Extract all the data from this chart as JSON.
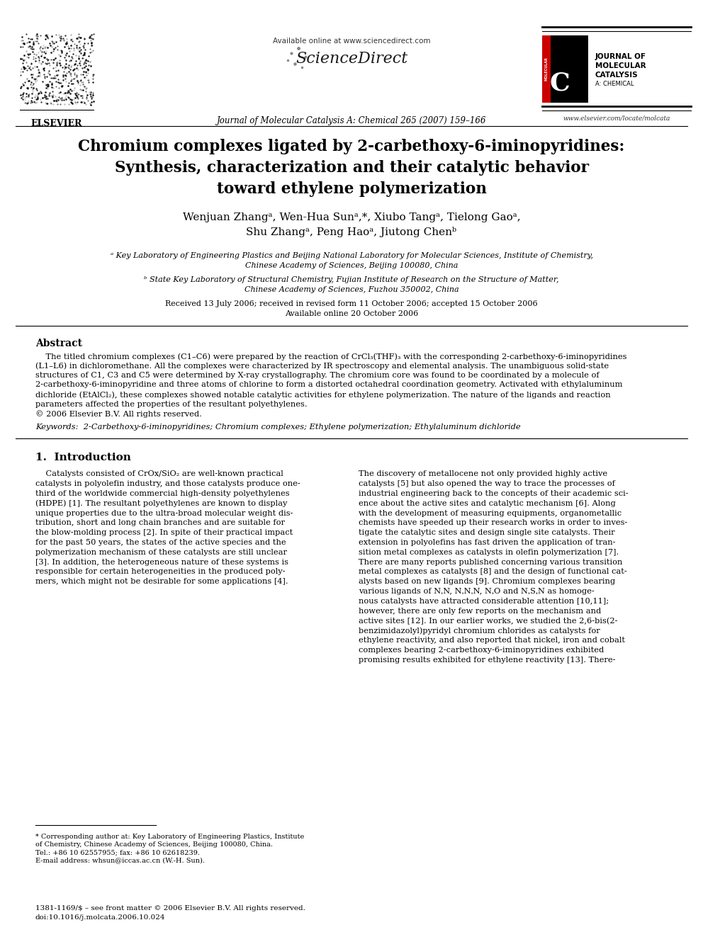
{
  "bg_color": "#ffffff",
  "title_line1": "Chromium complexes ligated by 2-carbethoxy-6-iminopyridines:",
  "title_line2": "Synthesis, characterization and their catalytic behavior",
  "title_line3": "toward ethylene polymerization",
  "authors_line1": "Wenjuan Zhangᵃ, Wen-Hua Sunᵃ,*, Xiubo Tangᵃ, Tielong Gaoᵃ,",
  "authors_line2": "Shu Zhangᵃ, Peng Haoᵃ, Jiutong Chenᵇ",
  "affil_a": "ᵃ Key Laboratory of Engineering Plastics and Beijing National Laboratory for Molecular Sciences, Institute of Chemistry,",
  "affil_a2": "Chinese Academy of Sciences, Beijing 100080, China",
  "affil_b": "ᵇ State Key Laboratory of Structural Chemistry, Fujian Institute of Research on the Structure of Matter,",
  "affil_b2": "Chinese Academy of Sciences, Fuzhou 350002, China",
  "received": "Received 13 July 2006; received in revised form 11 October 2006; accepted 15 October 2006",
  "available": "Available online 20 October 2006",
  "journal_header": "Journal of Molecular Catalysis A: Chemical 265 (2007) 159–166",
  "available_online_text": "Available online at www.sciencedirect.com",
  "elsevier_text": "ELSEVIER",
  "website": "www.elsevier.com/locate/molcata",
  "abstract_title": "Abstract",
  "keywords_text": "Keywords:  2-Carbethoxy-6-iminopyridines; Chromium complexes; Ethylene polymerization; Ethylaluminum dichloride",
  "section1_title": "1.  Introduction",
  "footnote_star": "* Corresponding author at: Key Laboratory of Engineering Plastics, Institute",
  "footnote_line2": "of Chemistry, Chinese Academy of Sciences, Beijing 100080, China.",
  "footnote_line3": "Tel.: +86 10 62557955; fax: +86 10 62618239.",
  "footnote_line4": "E-mail address: whsun@iccas.ac.cn (W.-H. Sun).",
  "issn_line1": "1381-1169/$ – see front matter © 2006 Elsevier B.V. All rights reserved.",
  "issn_line2": "doi:10.1016/j.molcata.2006.10.024",
  "abstract_lines": [
    "    The titled chromium complexes (C1–C6) were prepared by the reaction of CrCl₃(THF)₃ with the corresponding 2-carbethoxy-6-iminopyridines",
    "(L1–L6) in dichloromethane. All the complexes were characterized by IR spectroscopy and elemental analysis. The unambiguous solid-state",
    "structures of C1, C3 and C5 were determined by X-ray crystallography. The chromium core was found to be coordinated by a molecule of",
    "2-carbethoxy-6-iminopyridine and three atoms of chlorine to form a distorted octahedral coordination geometry. Activated with ethylaluminum",
    "dichloride (EtAlCl₂), these complexes showed notable catalytic activities for ethylene polymerization. The nature of the ligands and reaction",
    "parameters affected the properties of the resultant polyethylenes.",
    "© 2006 Elsevier B.V. All rights reserved."
  ],
  "intro_col1_lines": [
    "    Catalysts consisted of CrOx/SiO₂ are well-known practical",
    "catalysts in polyolefin industry, and those catalysts produce one-",
    "third of the worldwide commercial high-density polyethylenes",
    "(HDPE) [1]. The resultant polyethylenes are known to display",
    "unique properties due to the ultra-broad molecular weight dis-",
    "tribution, short and long chain branches and are suitable for",
    "the blow-molding process [2]. In spite of their practical impact",
    "for the past 50 years, the states of the active species and the",
    "polymerization mechanism of these catalysts are still unclear",
    "[3]. In addition, the heterogeneous nature of these systems is",
    "responsible for certain heterogeneities in the produced poly-",
    "mers, which might not be desirable for some applications [4]."
  ],
  "intro_col2_lines": [
    "The discovery of metallocene not only provided highly active",
    "catalysts [5] but also opened the way to trace the processes of",
    "industrial engineering back to the concepts of their academic sci-",
    "ence about the active sites and catalytic mechanism [6]. Along",
    "with the development of measuring equipments, organometallic",
    "chemists have speeded up their research works in order to inves-",
    "tigate the catalytic sites and design single site catalysts. Their",
    "extension in polyolefins has fast driven the application of tran-",
    "sition metal complexes as catalysts in olefin polymerization [7].",
    "There are many reports published concerning various transition",
    "metal complexes as catalysts [8] and the design of functional cat-",
    "alysts based on new ligands [9]. Chromium complexes bearing",
    "various ligands of NˌN, NˌNˌN, NˌO and NˌSˌN as homoge-",
    "nous catalysts have attracted considerable attention [10,11];",
    "however, there are only few reports on the mechanism and",
    "active sites [12]. In our earlier works, we studied the 2,6-bis(2-",
    "benzimidazolyl)pyridyl chromium chlorides as catalysts for",
    "ethylene reactivity, and also reported that nickel, iron and cobalt",
    "complexes bearing 2-carbethoxy-6-iminopyridines exhibited",
    "promising results exhibited for ethylene reactivity [13]. There-"
  ]
}
